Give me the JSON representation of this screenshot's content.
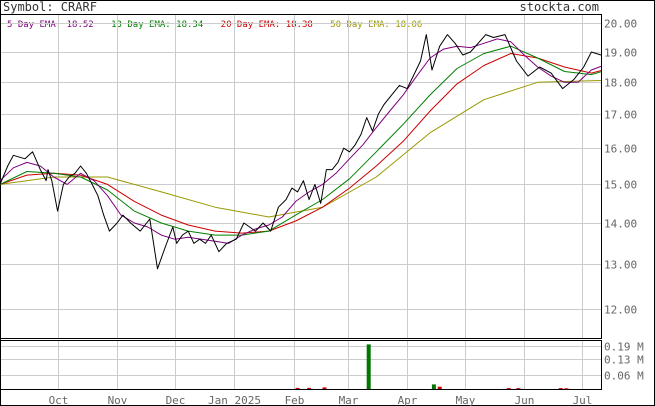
{
  "header": {
    "symbol_label": "Symbol: CRARF",
    "brand": "stockta.com",
    "ema_legend": [
      {
        "text": "5 Day EMA: 18.52",
        "color": "#800080"
      },
      {
        "text": "13 Day EMA: 18.34",
        "color": "#008000"
      },
      {
        "text": "20 Day EMA: 18.38",
        "color": "#cc0000"
      },
      {
        "text": "50 Day EMA: 18.06",
        "color": "#999900"
      }
    ]
  },
  "chart_data": {
    "type": "line",
    "y_scale": "log",
    "ylim": [
      11.4,
      20.3
    ],
    "y_ticks": [
      12,
      13,
      14,
      15,
      16,
      17,
      18,
      19,
      20
    ],
    "y_tick_labels": [
      "12.00",
      "13.00",
      "14.00",
      "15.00",
      "16.00",
      "17.00",
      "18.00",
      "19.00",
      "20.00"
    ],
    "x_labels": [
      {
        "label": "Oct",
        "date": "2024-10-01"
      },
      {
        "label": "Nov",
        "date": "2024-11-01"
      },
      {
        "label": "Dec",
        "date": "2024-12-01"
      },
      {
        "label": "Jan 2025",
        "date": "2025-01-01"
      },
      {
        "label": "Feb",
        "date": "2025-02-01"
      },
      {
        "label": "Mar",
        "date": "2025-03-01"
      },
      {
        "label": "Apr",
        "date": "2025-04-01"
      },
      {
        "label": "May",
        "date": "2025-05-01"
      },
      {
        "label": "Jun",
        "date": "2025-06-01"
      },
      {
        "label": "Jul",
        "date": "2025-07-01"
      }
    ],
    "x_range": [
      "2024-09-01",
      "2025-07-11"
    ],
    "grid": true,
    "series": [
      {
        "name": "Price",
        "color": "#000000",
        "x": [
          "2024-09-01",
          "2024-09-05",
          "2024-09-08",
          "2024-09-14",
          "2024-09-18",
          "2024-09-22",
          "2024-09-25",
          "2024-09-26",
          "2024-09-28",
          "2024-10-01",
          "2024-10-04",
          "2024-10-07",
          "2024-10-10",
          "2024-10-13",
          "2024-10-16",
          "2024-10-19",
          "2024-10-22",
          "2024-10-25",
          "2024-10-28",
          "2024-11-01",
          "2024-11-04",
          "2024-11-08",
          "2024-11-13",
          "2024-11-18",
          "2024-11-22",
          "2024-11-26",
          "2024-11-30",
          "2024-12-02",
          "2024-12-05",
          "2024-12-08",
          "2024-12-11",
          "2024-12-14",
          "2024-12-17",
          "2024-12-20",
          "2024-12-24",
          "2024-12-28",
          "2025-01-02",
          "2025-01-06",
          "2025-01-09",
          "2025-01-12",
          "2025-01-16",
          "2025-01-20",
          "2025-01-24",
          "2025-01-28",
          "2025-01-31",
          "2025-02-03",
          "2025-02-06",
          "2025-02-09",
          "2025-02-12",
          "2025-02-15",
          "2025-02-18",
          "2025-02-21",
          "2025-02-24",
          "2025-02-27",
          "2025-03-02",
          "2025-03-05",
          "2025-03-08",
          "2025-03-11",
          "2025-03-14",
          "2025-03-17",
          "2025-03-20",
          "2025-03-24",
          "2025-03-28",
          "2025-04-01",
          "2025-04-05",
          "2025-04-08",
          "2025-04-11",
          "2025-04-14",
          "2025-04-18",
          "2025-04-22",
          "2025-04-26",
          "2025-04-30",
          "2025-05-04",
          "2025-05-08",
          "2025-05-12",
          "2025-05-16",
          "2025-05-22",
          "2025-05-28",
          "2025-06-03",
          "2025-06-09",
          "2025-06-15",
          "2025-06-21",
          "2025-06-27",
          "2025-07-02",
          "2025-07-06",
          "2025-07-11"
        ],
        "values": [
          15.0,
          15.5,
          15.8,
          15.7,
          15.9,
          15.4,
          15.1,
          15.4,
          15.1,
          14.3,
          15.0,
          15.2,
          15.3,
          15.5,
          15.3,
          15.0,
          14.7,
          14.2,
          13.8,
          14.0,
          14.2,
          14.0,
          13.8,
          14.1,
          12.9,
          13.4,
          13.9,
          13.5,
          13.7,
          13.8,
          13.5,
          13.6,
          13.5,
          13.7,
          13.3,
          13.5,
          13.6,
          14.0,
          13.9,
          13.8,
          14.0,
          13.8,
          14.4,
          14.6,
          14.9,
          14.8,
          15.1,
          14.6,
          15.0,
          14.5,
          15.4,
          15.4,
          15.6,
          16.0,
          15.9,
          16.1,
          16.4,
          16.9,
          16.5,
          17.0,
          17.3,
          17.6,
          17.9,
          17.8,
          18.3,
          18.7,
          19.6,
          18.4,
          19.2,
          19.6,
          19.3,
          18.9,
          19.0,
          19.3,
          19.6,
          19.5,
          19.6,
          18.7,
          18.2,
          18.5,
          18.3,
          17.8,
          18.1,
          18.5,
          19.0,
          18.9
        ]
      },
      {
        "name": "5 Day EMA",
        "color": "#800080",
        "x": [
          "2024-09-01",
          "2024-09-08",
          "2024-09-15",
          "2024-09-22",
          "2024-09-29",
          "2024-10-06",
          "2024-10-13",
          "2024-10-20",
          "2024-10-27",
          "2024-11-03",
          "2024-11-10",
          "2024-11-17",
          "2024-11-24",
          "2024-12-01",
          "2024-12-08",
          "2024-12-15",
          "2024-12-22",
          "2024-12-29",
          "2025-01-05",
          "2025-01-12",
          "2025-01-19",
          "2025-01-26",
          "2025-02-02",
          "2025-02-09",
          "2025-02-16",
          "2025-02-23",
          "2025-03-02",
          "2025-03-09",
          "2025-03-16",
          "2025-03-23",
          "2025-03-30",
          "2025-04-06",
          "2025-04-13",
          "2025-04-20",
          "2025-04-27",
          "2025-05-04",
          "2025-05-11",
          "2025-05-18",
          "2025-05-25",
          "2025-06-01",
          "2025-06-08",
          "2025-06-15",
          "2025-06-22",
          "2025-06-29",
          "2025-07-06",
          "2025-07-11"
        ],
        "values": [
          15.1,
          15.45,
          15.6,
          15.5,
          15.2,
          15.0,
          15.3,
          15.1,
          14.7,
          14.2,
          14.0,
          13.9,
          13.7,
          13.6,
          13.65,
          13.6,
          13.55,
          13.5,
          13.7,
          13.85,
          13.95,
          14.15,
          14.55,
          14.8,
          15.0,
          15.3,
          15.7,
          16.1,
          16.6,
          17.1,
          17.6,
          18.2,
          18.8,
          19.1,
          19.2,
          19.15,
          19.3,
          19.45,
          19.35,
          18.9,
          18.5,
          18.2,
          18.0,
          18.0,
          18.4,
          18.52
        ]
      },
      {
        "name": "13 Day EMA",
        "color": "#008000",
        "x": [
          "2024-09-01",
          "2024-09-15",
          "2024-09-29",
          "2024-10-13",
          "2024-10-27",
          "2024-11-10",
          "2024-11-24",
          "2024-12-08",
          "2024-12-22",
          "2025-01-05",
          "2025-01-19",
          "2025-02-02",
          "2025-02-16",
          "2025-03-02",
          "2025-03-16",
          "2025-03-30",
          "2025-04-13",
          "2025-04-27",
          "2025-05-11",
          "2025-05-25",
          "2025-06-08",
          "2025-06-22",
          "2025-07-06",
          "2025-07-11"
        ],
        "values": [
          15.0,
          15.35,
          15.3,
          15.2,
          14.85,
          14.3,
          14.0,
          13.8,
          13.7,
          13.7,
          13.8,
          14.2,
          14.6,
          15.15,
          15.9,
          16.7,
          17.6,
          18.45,
          18.95,
          19.2,
          18.8,
          18.35,
          18.25,
          18.34
        ]
      },
      {
        "name": "20 Day EMA",
        "color": "#cc0000",
        "x": [
          "2024-09-01",
          "2024-09-15",
          "2024-09-29",
          "2024-10-13",
          "2024-10-27",
          "2024-11-10",
          "2024-11-24",
          "2024-12-08",
          "2024-12-22",
          "2025-01-05",
          "2025-01-19",
          "2025-02-02",
          "2025-02-16",
          "2025-03-02",
          "2025-03-16",
          "2025-03-30",
          "2025-04-13",
          "2025-04-27",
          "2025-05-11",
          "2025-05-25",
          "2025-06-08",
          "2025-06-22",
          "2025-07-06",
          "2025-07-11"
        ],
        "values": [
          15.0,
          15.25,
          15.3,
          15.25,
          15.0,
          14.55,
          14.2,
          13.95,
          13.8,
          13.75,
          13.8,
          14.05,
          14.4,
          14.9,
          15.5,
          16.2,
          17.1,
          17.95,
          18.55,
          18.95,
          18.8,
          18.5,
          18.3,
          18.38
        ]
      },
      {
        "name": "50 Day EMA",
        "color": "#999900",
        "x": [
          "2024-09-01",
          "2024-09-29",
          "2024-10-27",
          "2024-11-24",
          "2024-12-22",
          "2025-01-19",
          "2025-02-16",
          "2025-03-16",
          "2025-04-13",
          "2025-05-11",
          "2025-06-08",
          "2025-07-06",
          "2025-07-11"
        ],
        "values": [
          15.0,
          15.2,
          15.2,
          14.8,
          14.4,
          14.15,
          14.4,
          15.2,
          16.45,
          17.45,
          18.0,
          18.05,
          18.06
        ]
      }
    ],
    "volume": {
      "color": "#007700",
      "ticks": [
        0.06,
        0.13,
        0.19
      ],
      "tick_labels": [
        "0.06 M",
        "0.13 M",
        "0.19 M"
      ],
      "ylim": [
        0,
        0.21
      ],
      "bars": [
        {
          "date": "2025-02-03",
          "value": 0.005
        },
        {
          "date": "2025-02-09",
          "value": 0.005
        },
        {
          "date": "2025-02-17",
          "value": 0.007
        },
        {
          "date": "2025-03-12",
          "value": 0.195
        },
        {
          "date": "2025-04-15",
          "value": 0.02
        },
        {
          "date": "2025-04-18",
          "value": 0.01
        },
        {
          "date": "2025-05-24",
          "value": 0.004
        },
        {
          "date": "2025-05-29",
          "value": 0.004
        },
        {
          "date": "2025-06-20",
          "value": 0.004
        },
        {
          "date": "2025-06-23",
          "value": 0.003
        }
      ]
    }
  }
}
